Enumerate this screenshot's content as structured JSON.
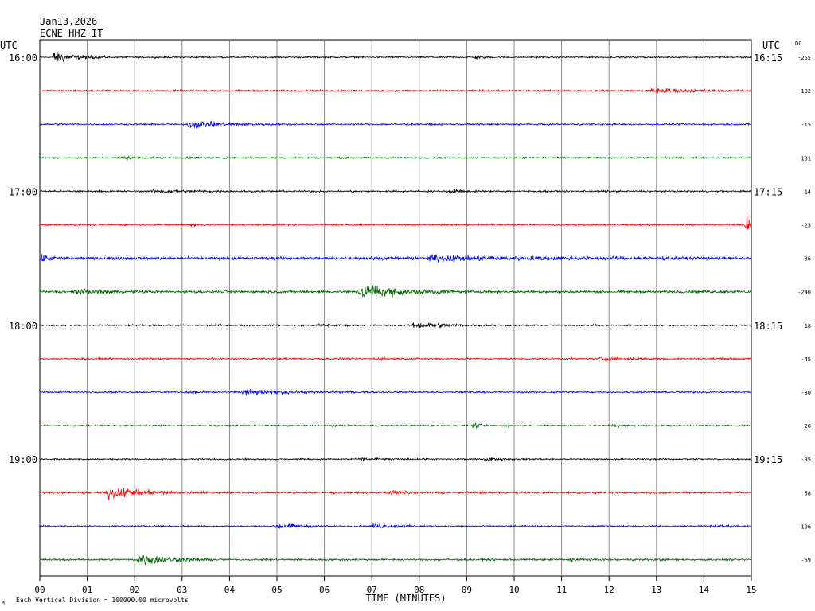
{
  "header": {
    "date": "Jan13,2026",
    "station": "ECNE HHZ IT"
  },
  "left_axis_title": "UTC",
  "right_axis_title": "UTC",
  "dc_title": "DC",
  "footer": {
    "scale_note": "Each Vertical Division = 100000.00 microvolts",
    "corner_mark": "M"
  },
  "colors": {
    "palette": [
      "#000000",
      "#ff0000",
      "#0000ff",
      "#006400"
    ],
    "grid": "#888888"
  },
  "chart_data": {
    "type": "line",
    "title": "Jan13,2026 ECNE HHZ IT",
    "xlabel": "TIME (MINUTES)",
    "x_ticks": [
      "00",
      "01",
      "02",
      "03",
      "04",
      "05",
      "06",
      "07",
      "08",
      "09",
      "10",
      "11",
      "12",
      "13",
      "14",
      "15"
    ],
    "xlim": [
      0,
      15
    ],
    "grid": true,
    "row_labels_left": [
      "16:00",
      "",
      "",
      "",
      "17:00",
      "",
      "",
      "",
      "18:00",
      "",
      "",
      "",
      "19:00",
      "",
      "",
      ""
    ],
    "row_labels_right": [
      "16:15",
      "",
      "",
      "",
      "17:15",
      "",
      "",
      "",
      "18:15",
      "",
      "",
      "",
      "19:15",
      "",
      "",
      ""
    ],
    "dc_offsets": [
      "-255",
      "-132",
      "-15",
      "101",
      "14",
      "-23",
      "86",
      "-240",
      "18",
      "-45",
      "-80",
      "20",
      "-95",
      "58",
      "-106",
      "-69"
    ],
    "noise_levels": [
      0.35,
      0.4,
      0.4,
      0.35,
      0.4,
      0.4,
      0.7,
      0.6,
      0.35,
      0.4,
      0.4,
      0.35,
      0.35,
      0.45,
      0.35,
      0.45
    ],
    "events": [
      [
        {
          "t": 0.3,
          "amp": 3.0,
          "dur": 0.4
        },
        {
          "t": 9.2,
          "amp": 0.9,
          "dur": 0.15
        }
      ],
      [
        {
          "t": 12.9,
          "amp": 1.3,
          "dur": 0.7
        }
      ],
      [
        {
          "t": 3.15,
          "amp": 2.0,
          "dur": 0.6
        }
      ],
      [
        {
          "t": 1.7,
          "amp": 0.6,
          "dur": 0.3
        },
        {
          "t": 3.1,
          "amp": 0.5,
          "dur": 0.3
        }
      ],
      [
        {
          "t": 2.4,
          "amp": 0.7,
          "dur": 0.8
        },
        {
          "t": 8.6,
          "amp": 1.2,
          "dur": 0.25
        }
      ],
      [
        {
          "t": 14.9,
          "amp": 4.0,
          "dur": 0.3
        },
        {
          "t": 3.2,
          "amp": 0.6,
          "dur": 0.2
        }
      ],
      [
        {
          "t": 8.2,
          "amp": 1.1,
          "dur": 2.0
        },
        {
          "t": 0.05,
          "amp": 1.3,
          "dur": 0.2
        }
      ],
      [
        {
          "t": 6.75,
          "amp": 3.8,
          "dur": 0.7
        },
        {
          "t": 0.7,
          "amp": 1.0,
          "dur": 0.6
        }
      ],
      [
        {
          "t": 7.9,
          "amp": 1.6,
          "dur": 0.6
        },
        {
          "t": 5.9,
          "amp": 0.6,
          "dur": 0.25
        }
      ],
      [
        {
          "t": 11.8,
          "amp": 0.7,
          "dur": 0.5
        },
        {
          "t": 7.1,
          "amp": 0.5,
          "dur": 0.3
        }
      ],
      [
        {
          "t": 4.3,
          "amp": 1.4,
          "dur": 0.7
        },
        {
          "t": 3.1,
          "amp": 0.6,
          "dur": 0.3
        }
      ],
      [
        {
          "t": 9.15,
          "amp": 1.0,
          "dur": 0.15
        },
        {
          "t": 12.0,
          "amp": 0.4,
          "dur": 0.3
        }
      ],
      [
        {
          "t": 6.8,
          "amp": 0.6,
          "dur": 0.4
        },
        {
          "t": 9.4,
          "amp": 0.6,
          "dur": 0.3
        }
      ],
      [
        {
          "t": 1.45,
          "amp": 2.8,
          "dur": 0.7
        },
        {
          "t": 7.4,
          "amp": 0.8,
          "dur": 0.4
        }
      ],
      [
        {
          "t": 5.0,
          "amp": 1.6,
          "dur": 0.4
        },
        {
          "t": 7.0,
          "amp": 0.9,
          "dur": 0.5
        },
        {
          "t": 14.1,
          "amp": 0.6,
          "dur": 0.4
        }
      ],
      [
        {
          "t": 2.1,
          "amp": 3.0,
          "dur": 0.6
        },
        {
          "t": 11.2,
          "amp": 0.6,
          "dur": 0.4
        }
      ]
    ]
  }
}
